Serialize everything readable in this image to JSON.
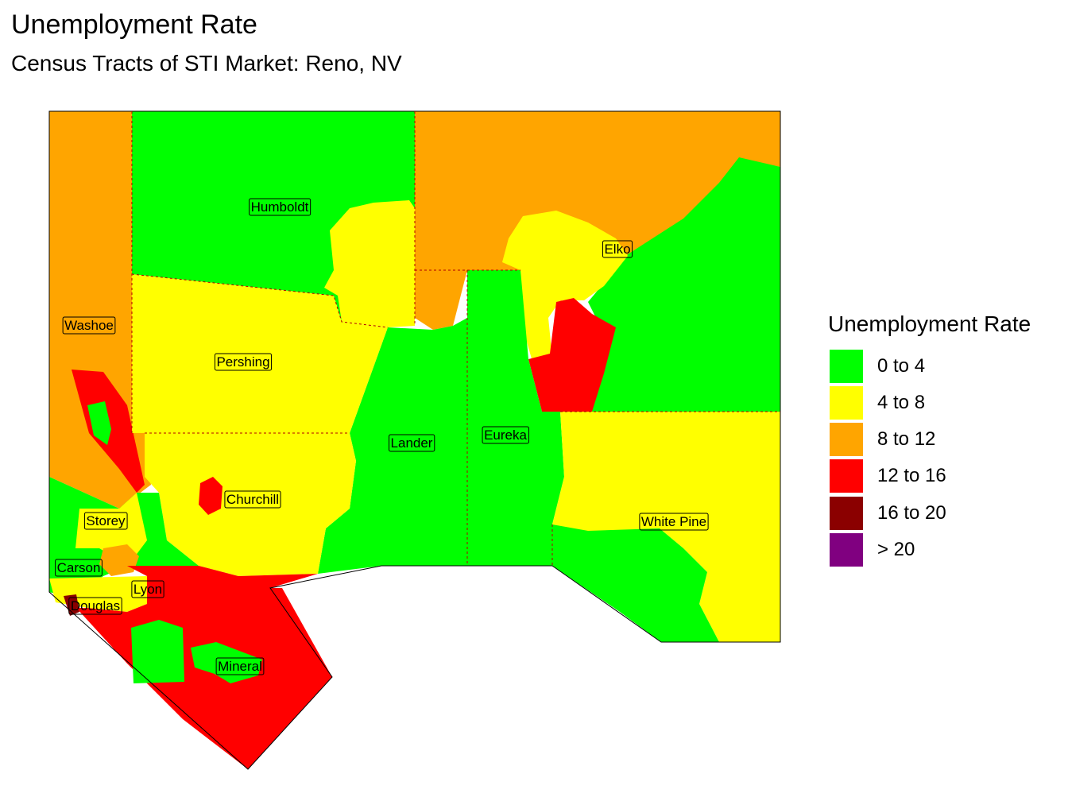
{
  "title": "Unemployment Rate",
  "subtitle": "Census Tracts of STI Market: Reno, NV",
  "legend": {
    "title": "Unemployment Rate",
    "classes": [
      {
        "label": "0 to 4",
        "color": "#00FF00"
      },
      {
        "label": "4 to 8",
        "color": "#FFFF00"
      },
      {
        "label": "8 to 12",
        "color": "#FFA500"
      },
      {
        "label": "12 to 16",
        "color": "#FF0000"
      },
      {
        "label": "16 to 20",
        "color": "#8B0000"
      },
      {
        "label": "> 20",
        "color": "#800080"
      }
    ]
  },
  "counties": [
    "Humboldt",
    "Elko",
    "Washoe",
    "Pershing",
    "Lander",
    "Eureka",
    "Churchill",
    "Storey",
    "White Pine",
    "Carson",
    "Lyon",
    "Douglas",
    "Mineral"
  ]
}
